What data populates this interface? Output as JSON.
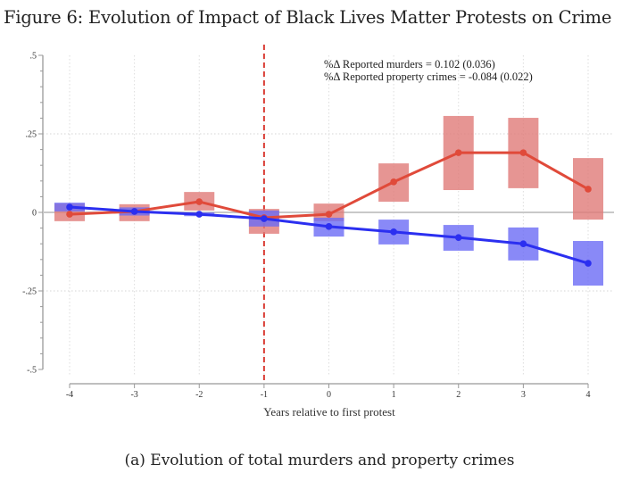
{
  "figure": {
    "title": "Figure 6: Evolution of Impact of Black Lives Matter Protests on Crime",
    "caption": "(a) Evolution of total murders and property crimes"
  },
  "colors": {
    "murders_line": "#e04a3a",
    "murders_ci": "#e07a78",
    "property_line": "#2b2ff0",
    "property_ci": "#6c6cf5",
    "event_line": "#d93b33",
    "zero_line": "#c8c8c8",
    "grid": "#dddddd",
    "axis": "#999999"
  },
  "chart_data": {
    "type": "line",
    "title": "",
    "xlabel": "Years relative to first protest",
    "ylabel": "",
    "x": [
      -4,
      -3,
      -2,
      -1,
      0,
      1,
      2,
      3,
      4
    ],
    "xlim": [
      -4,
      4
    ],
    "ylim": [
      -0.5,
      0.5
    ],
    "x_ticks": [
      -4,
      -3,
      -2,
      -1,
      0,
      1,
      2,
      3,
      4
    ],
    "x_tick_labels": [
      "-4",
      "-3",
      "-2",
      "-1",
      "0",
      "1",
      "2",
      "3",
      "4"
    ],
    "y_ticks": [
      0.5,
      0.25,
      0,
      -0.25,
      -0.5
    ],
    "y_tick_labels": [
      ".5",
      ".25",
      "0",
      "-.25",
      "-.5"
    ],
    "y_minor_step": 0.05,
    "grid": true,
    "event_line_x": -1,
    "reference_line_y": 0,
    "annotations": [
      "%Δ Reported murders = 0.102 (0.036)",
      "%Δ Reported property crimes = -0.084 (0.022)"
    ],
    "series": [
      {
        "name": "Reported murders",
        "color_key": "murders_line",
        "values": [
          -0.006,
          0.003,
          0.034,
          -0.017,
          -0.006,
          0.097,
          0.19,
          0.19,
          0.074
        ],
        "ci_low": [
          -0.028,
          -0.028,
          0.006,
          -0.068,
          -0.028,
          0.034,
          0.071,
          0.077,
          -0.023
        ],
        "ci_high": [
          0.028,
          0.026,
          0.065,
          0.011,
          0.028,
          0.156,
          0.307,
          0.301,
          0.173
        ]
      },
      {
        "name": "Reported property crimes",
        "color_key": "property_line",
        "values": [
          0.017,
          0.003,
          -0.006,
          -0.02,
          -0.045,
          -0.062,
          -0.08,
          -0.1,
          -0.162
        ],
        "ci_low": [
          0.003,
          -0.01,
          -0.012,
          -0.045,
          -0.077,
          -0.102,
          -0.122,
          -0.153,
          -0.233
        ],
        "ci_high": [
          0.031,
          0.016,
          0.0,
          0.006,
          -0.017,
          -0.023,
          -0.04,
          -0.048,
          -0.091
        ]
      }
    ]
  }
}
